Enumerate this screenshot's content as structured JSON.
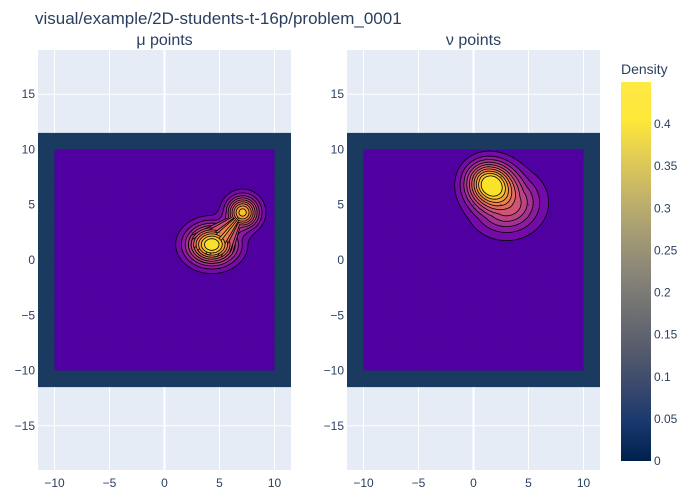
{
  "title": "visual/example/2D-students-t-16p/problem_0001",
  "colors": {
    "plot_bg": "#e5ecf6",
    "grid": "#ffffff",
    "frame": "#1a3a60",
    "base_fill": "#5000a0",
    "contour_line": "#000000",
    "dot": "#2a2a60"
  },
  "colorscale": [
    [
      0.0,
      "#00204c"
    ],
    [
      0.1,
      "#18386e"
    ],
    [
      0.2,
      "#3b496c"
    ],
    [
      0.3,
      "#575d6d"
    ],
    [
      0.4,
      "#707173"
    ],
    [
      0.5,
      "#8a8678"
    ],
    [
      0.6,
      "#a59c74"
    ],
    [
      0.7,
      "#c3b369"
    ],
    [
      0.8,
      "#e1cc55"
    ],
    [
      0.9,
      "#fee838"
    ],
    [
      1.0,
      "#ffe945"
    ]
  ],
  "contour_colorscale": [
    [
      0.0,
      "#5000a0"
    ],
    [
      0.2,
      "#7a0ca8"
    ],
    [
      0.4,
      "#b03a8e"
    ],
    [
      0.6,
      "#dc5d6a"
    ],
    [
      0.8,
      "#f6973d"
    ],
    [
      1.0,
      "#f8e22a"
    ]
  ],
  "colorbar": {
    "title": "Density",
    "min": 0,
    "max": 0.45,
    "ticks": [
      0,
      0.05,
      0.1,
      0.15,
      0.2,
      0.25,
      0.3,
      0.35,
      0.4
    ]
  },
  "chart_data": [
    {
      "type": "contour",
      "title": "μ points",
      "xlim": [
        -11.5,
        11.5
      ],
      "ylim": [
        -19,
        19
      ],
      "xticks": [
        -10,
        -5,
        0,
        5,
        10
      ],
      "yticks": [
        -15,
        -10,
        -5,
        0,
        5,
        10,
        15
      ],
      "tick_labels_x": [
        "−10",
        "−5",
        "0",
        "5",
        "10"
      ],
      "tick_labels_y": [
        "−15",
        "−10",
        "−5",
        "0",
        "5",
        "10",
        "15"
      ],
      "frame_extent": [
        -11.5,
        11.5,
        -11.5,
        11.5
      ],
      "data_extent": [
        -10,
        10,
        -10,
        10
      ],
      "peaks": [
        {
          "x": 4.3,
          "y": 1.4,
          "height": 0.44,
          "sx": 1.5,
          "sy": 1.2
        },
        {
          "x": 7.1,
          "y": 4.3,
          "height": 0.38,
          "sx": 1.0,
          "sy": 1.0
        }
      ],
      "contour_levels": [
        0.04,
        0.08,
        0.12,
        0.16,
        0.2,
        0.24,
        0.28,
        0.32,
        0.36,
        0.4
      ]
    },
    {
      "type": "contour",
      "title": "ν points",
      "xlim": [
        -11.5,
        11.5
      ],
      "ylim": [
        -19,
        19
      ],
      "xticks": [
        -10,
        -5,
        0,
        5,
        10
      ],
      "yticks": [
        -15,
        -10,
        -5,
        0,
        5,
        10,
        15
      ],
      "tick_labels_x": [
        "−10",
        "−5",
        "0",
        "5",
        "10"
      ],
      "tick_labels_y": [
        "−15",
        "−10",
        "−5",
        "0",
        "5",
        "10",
        "15"
      ],
      "frame_extent": [
        -11.5,
        11.5,
        -11.5,
        11.5
      ],
      "data_extent": [
        -10,
        10,
        -10,
        10
      ],
      "peaks": [
        {
          "x": 1.4,
          "y": 7.0,
          "height": 0.44,
          "sx": 1.4,
          "sy": 1.3
        },
        {
          "x": 3.0,
          "y": 5.2,
          "height": 0.25,
          "sx": 2.0,
          "sy": 1.8
        }
      ],
      "contour_levels": [
        0.04,
        0.08,
        0.12,
        0.16,
        0.2,
        0.24,
        0.28,
        0.32,
        0.36,
        0.4
      ]
    }
  ]
}
